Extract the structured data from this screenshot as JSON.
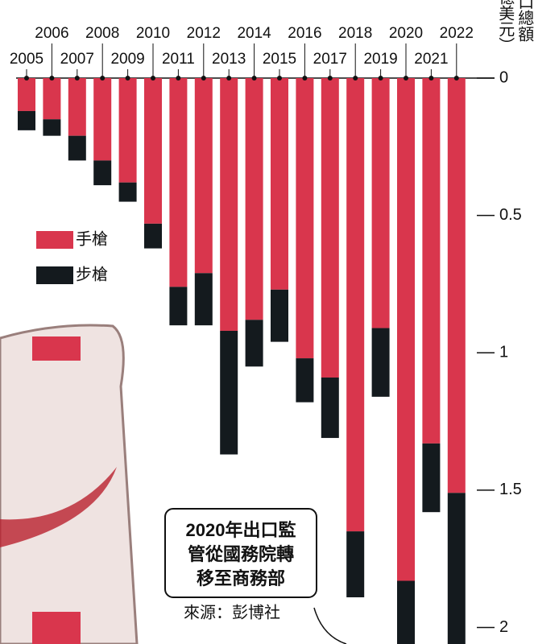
{
  "chart_data": {
    "type": "bar",
    "stacked": true,
    "y_label_lines": [
      "口總額",
      "億美元）"
    ],
    "categories": [
      "2005",
      "2006",
      "2007",
      "2008",
      "2009",
      "2010",
      "2011",
      "2012",
      "2013",
      "2014",
      "2015",
      "2016",
      "2017",
      "2018",
      "2019",
      "2020",
      "2021",
      "2022"
    ],
    "series": [
      {
        "name": "手槍",
        "color": "#d9364d",
        "values": [
          0.12,
          0.15,
          0.21,
          0.3,
          0.38,
          0.53,
          0.76,
          0.71,
          0.92,
          0.88,
          0.77,
          1.02,
          1.09,
          1.65,
          0.91,
          1.83,
          1.33,
          1.51
        ]
      },
      {
        "name": "步槍",
        "color": "#141a1e",
        "values": [
          0.07,
          0.06,
          0.09,
          0.09,
          0.07,
          0.09,
          0.14,
          0.19,
          0.45,
          0.17,
          0.19,
          0.16,
          0.22,
          0.24,
          0.25,
          0.25,
          0.25,
          0.6
        ]
      }
    ],
    "ylim": [
      0,
      2.06
    ],
    "yticks": [
      0,
      0.5,
      1,
      1.5,
      2
    ],
    "inverted": true,
    "annotation_lines": [
      "2020年出口監",
      "管從國務院轉",
      "移至商務部"
    ],
    "source": "來源：彭博社"
  }
}
